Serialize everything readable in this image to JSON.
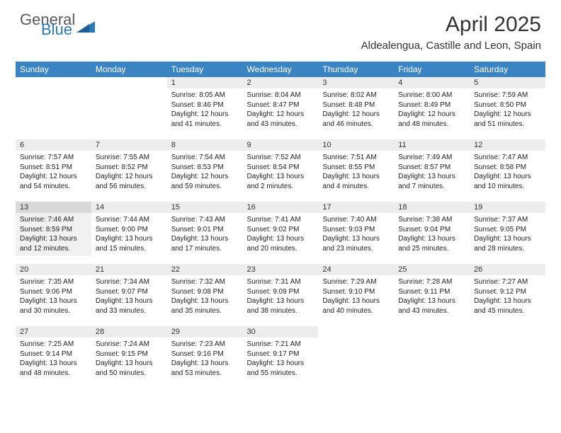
{
  "logo": {
    "word1": "General",
    "word2": "Blue"
  },
  "title": "April 2025",
  "location": "Aldealengua, Castille and Leon, Spain",
  "colors": {
    "header_bg": "#3b84c4",
    "header_text": "#ffffff",
    "daynum_bg": "#ededed",
    "daynum_bg_shaded": "#d9d9d9",
    "cell_bg_shaded": "#f1f1f1",
    "logo_gray": "#5a5a5a",
    "logo_blue": "#2a7ab8"
  },
  "weekdays": [
    "Sunday",
    "Monday",
    "Tuesday",
    "Wednesday",
    "Thursday",
    "Friday",
    "Saturday"
  ],
  "weeks": [
    [
      null,
      null,
      {
        "n": "1",
        "sr": "8:05 AM",
        "ss": "8:46 PM",
        "dl": "12 hours and 41 minutes."
      },
      {
        "n": "2",
        "sr": "8:04 AM",
        "ss": "8:47 PM",
        "dl": "12 hours and 43 minutes."
      },
      {
        "n": "3",
        "sr": "8:02 AM",
        "ss": "8:48 PM",
        "dl": "12 hours and 46 minutes."
      },
      {
        "n": "4",
        "sr": "8:00 AM",
        "ss": "8:49 PM",
        "dl": "12 hours and 48 minutes."
      },
      {
        "n": "5",
        "sr": "7:59 AM",
        "ss": "8:50 PM",
        "dl": "12 hours and 51 minutes."
      }
    ],
    [
      {
        "n": "6",
        "sr": "7:57 AM",
        "ss": "8:51 PM",
        "dl": "12 hours and 54 minutes."
      },
      {
        "n": "7",
        "sr": "7:55 AM",
        "ss": "8:52 PM",
        "dl": "12 hours and 56 minutes."
      },
      {
        "n": "8",
        "sr": "7:54 AM",
        "ss": "8:53 PM",
        "dl": "12 hours and 59 minutes."
      },
      {
        "n": "9",
        "sr": "7:52 AM",
        "ss": "8:54 PM",
        "dl": "13 hours and 2 minutes."
      },
      {
        "n": "10",
        "sr": "7:51 AM",
        "ss": "8:55 PM",
        "dl": "13 hours and 4 minutes."
      },
      {
        "n": "11",
        "sr": "7:49 AM",
        "ss": "8:57 PM",
        "dl": "13 hours and 7 minutes."
      },
      {
        "n": "12",
        "sr": "7:47 AM",
        "ss": "8:58 PM",
        "dl": "13 hours and 10 minutes."
      }
    ],
    [
      {
        "n": "13",
        "sr": "7:46 AM",
        "ss": "8:59 PM",
        "dl": "13 hours and 12 minutes.",
        "shaded": true
      },
      {
        "n": "14",
        "sr": "7:44 AM",
        "ss": "9:00 PM",
        "dl": "13 hours and 15 minutes."
      },
      {
        "n": "15",
        "sr": "7:43 AM",
        "ss": "9:01 PM",
        "dl": "13 hours and 17 minutes."
      },
      {
        "n": "16",
        "sr": "7:41 AM",
        "ss": "9:02 PM",
        "dl": "13 hours and 20 minutes."
      },
      {
        "n": "17",
        "sr": "7:40 AM",
        "ss": "9:03 PM",
        "dl": "13 hours and 23 minutes."
      },
      {
        "n": "18",
        "sr": "7:38 AM",
        "ss": "9:04 PM",
        "dl": "13 hours and 25 minutes."
      },
      {
        "n": "19",
        "sr": "7:37 AM",
        "ss": "9:05 PM",
        "dl": "13 hours and 28 minutes."
      }
    ],
    [
      {
        "n": "20",
        "sr": "7:35 AM",
        "ss": "9:06 PM",
        "dl": "13 hours and 30 minutes."
      },
      {
        "n": "21",
        "sr": "7:34 AM",
        "ss": "9:07 PM",
        "dl": "13 hours and 33 minutes."
      },
      {
        "n": "22",
        "sr": "7:32 AM",
        "ss": "9:08 PM",
        "dl": "13 hours and 35 minutes."
      },
      {
        "n": "23",
        "sr": "7:31 AM",
        "ss": "9:09 PM",
        "dl": "13 hours and 38 minutes."
      },
      {
        "n": "24",
        "sr": "7:29 AM",
        "ss": "9:10 PM",
        "dl": "13 hours and 40 minutes."
      },
      {
        "n": "25",
        "sr": "7:28 AM",
        "ss": "9:11 PM",
        "dl": "13 hours and 43 minutes."
      },
      {
        "n": "26",
        "sr": "7:27 AM",
        "ss": "9:12 PM",
        "dl": "13 hours and 45 minutes."
      }
    ],
    [
      {
        "n": "27",
        "sr": "7:25 AM",
        "ss": "9:14 PM",
        "dl": "13 hours and 48 minutes."
      },
      {
        "n": "28",
        "sr": "7:24 AM",
        "ss": "9:15 PM",
        "dl": "13 hours and 50 minutes."
      },
      {
        "n": "29",
        "sr": "7:23 AM",
        "ss": "9:16 PM",
        "dl": "13 hours and 53 minutes."
      },
      {
        "n": "30",
        "sr": "7:21 AM",
        "ss": "9:17 PM",
        "dl": "13 hours and 55 minutes."
      },
      null,
      null,
      null
    ]
  ],
  "labels": {
    "sunrise": "Sunrise:",
    "sunset": "Sunset:",
    "daylight": "Daylight:"
  }
}
